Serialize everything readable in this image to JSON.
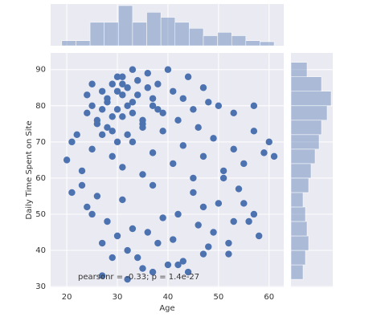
{
  "chart_data": {
    "type": "scatter",
    "xlabel": "Age",
    "ylabel": "Daily Time Spent on Site",
    "annotation": "pearsonr = -0.33; p = 1.4e-27",
    "color": "#4c72b0",
    "grid": true,
    "xlim": [
      16.8,
      62.9
    ],
    "ylim": [
      29.8,
      94.6
    ],
    "xticks": [
      20,
      30,
      40,
      50,
      60
    ],
    "yticks": [
      30,
      40,
      50,
      60,
      70,
      80,
      90
    ],
    "series": [
      {
        "x": [
          22,
          24,
          25,
          26,
          27,
          28,
          28,
          29,
          30,
          30,
          31,
          31,
          32,
          32,
          33,
          34,
          35,
          36,
          37,
          38,
          39,
          40,
          41,
          42,
          43,
          44,
          45,
          46,
          47,
          48,
          20,
          21,
          23,
          25,
          27,
          29,
          31,
          33,
          35,
          37,
          39,
          41,
          43,
          45,
          47,
          49,
          51,
          53,
          55,
          57,
          59,
          61,
          21,
          23,
          24,
          26,
          28,
          30,
          32,
          34,
          36,
          38,
          40,
          42,
          44,
          46,
          48,
          50,
          52,
          54,
          56,
          58,
          25,
          27,
          29,
          31,
          33,
          35,
          37,
          39,
          41,
          43,
          45,
          47,
          49,
          51,
          53,
          55,
          57,
          27,
          32,
          37,
          42,
          47,
          52,
          26,
          27,
          28,
          29,
          30,
          31,
          32,
          33,
          34,
          35,
          36,
          37,
          38,
          29,
          30,
          31,
          33,
          35,
          24,
          25,
          50,
          53,
          57,
          60
        ],
        "y": [
          72,
          78,
          80,
          76,
          84,
          82,
          74,
          86,
          79,
          88,
          77,
          83,
          85,
          72,
          81,
          87,
          75,
          89,
          80,
          86,
          78,
          90,
          84,
          76,
          82,
          88,
          79,
          74,
          85,
          81,
          65,
          70,
          62,
          68,
          72,
          66,
          63,
          70,
          61,
          67,
          73,
          64,
          69,
          60,
          66,
          71,
          62,
          68,
          64,
          73,
          67,
          66,
          56,
          58,
          52,
          55,
          48,
          44,
          40,
          38,
          45,
          42,
          36,
          50,
          34,
          47,
          41,
          53,
          39,
          57,
          48,
          44,
          50,
          42,
          38,
          54,
          46,
          35,
          58,
          49,
          43,
          37,
          56,
          52,
          45,
          60,
          48,
          53,
          50,
          33,
          32,
          34,
          36,
          39,
          42,
          75,
          79,
          81,
          77,
          84,
          86,
          80,
          78,
          83,
          76,
          85,
          82,
          79,
          73,
          70,
          88,
          90,
          74,
          83,
          86,
          80,
          78,
          80,
          70
        ]
      }
    ],
    "marginal_x": {
      "bins": [
        19,
        21.8,
        24.6,
        27.4,
        30.2,
        33,
        35.8,
        38.6,
        41.4,
        44.2,
        47,
        49.8,
        52.6,
        55.4,
        58.2,
        61
      ],
      "counts": [
        15,
        15,
        70,
        70,
        120,
        70,
        100,
        85,
        70,
        52,
        30,
        40,
        30,
        15,
        12
      ]
    },
    "marginal_y": {
      "bins": [
        32,
        36,
        40,
        44,
        48,
        52,
        56,
        60,
        64,
        68,
        72,
        76,
        80,
        84,
        88,
        92
      ],
      "counts": [
        15,
        18,
        22,
        20,
        18,
        15,
        22,
        25,
        30,
        35,
        38,
        45,
        50,
        38,
        20
      ]
    }
  }
}
